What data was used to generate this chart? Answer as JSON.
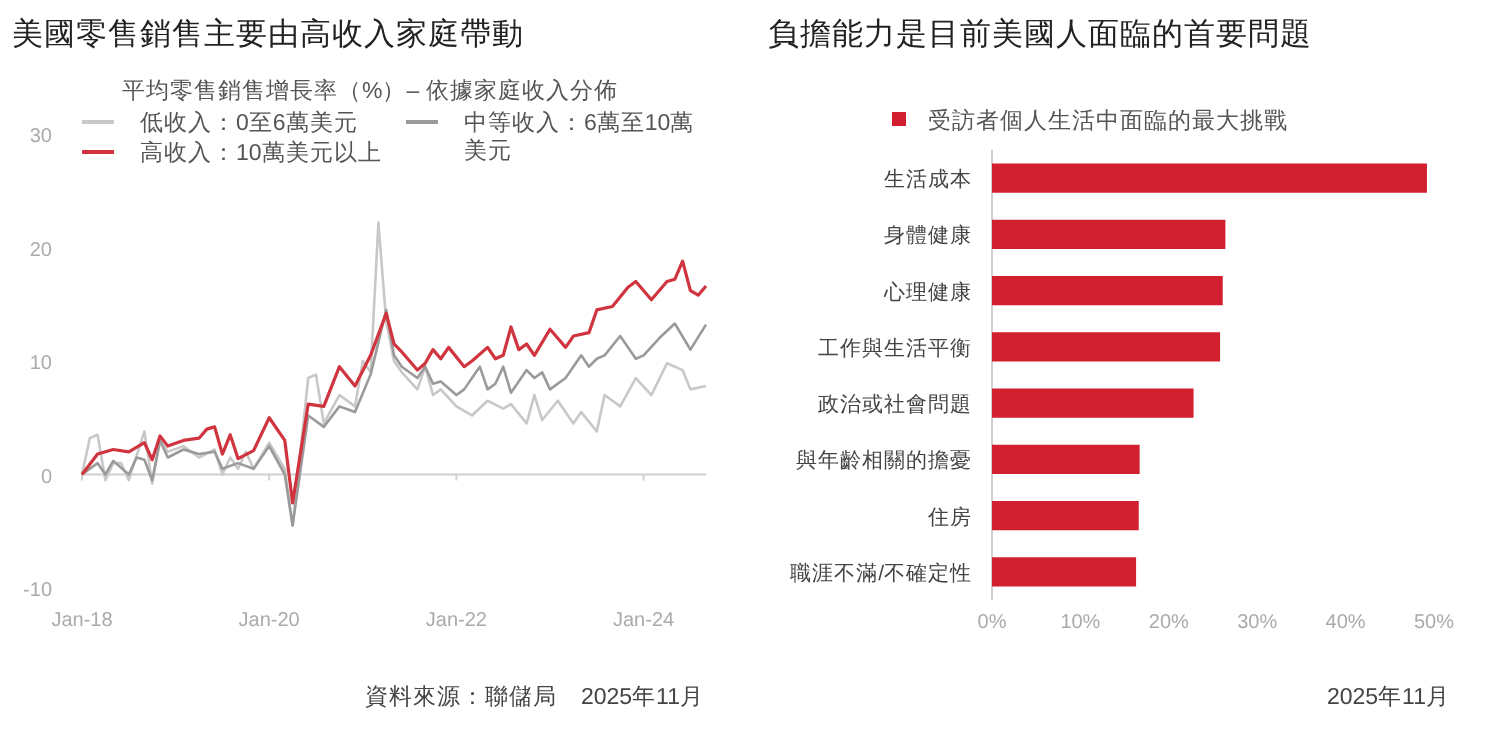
{
  "chart_data": [
    {
      "type": "line",
      "title": "美國零售銷售主要由高收入家庭帶動",
      "legend_title": "平均零售銷售增長率（%）– 依據家庭收入分佈",
      "legend": "top",
      "marker": "none",
      "line_style": "solid",
      "grid": false,
      "xlim": [
        "2018-01",
        "2024-09"
      ],
      "xticks": [
        {
          "value": "2018-01",
          "label": "Jan-18"
        },
        {
          "value": "2020-01",
          "label": "Jan-20"
        },
        {
          "value": "2022-01",
          "label": "Jan-22"
        },
        {
          "value": "2024-01",
          "label": "Jan-24"
        }
      ],
      "ylim": [
        -10,
        30
      ],
      "yticks": [
        -10,
        0,
        10,
        20,
        30
      ],
      "ref_lines": [
        {
          "axis": "y",
          "value": 0,
          "color": "#d0d0d0"
        }
      ],
      "annotations": [
        "資料來源：聯儲局　2025年11月"
      ],
      "series": [
        {
          "name": "低收入：0至6萬美元",
          "color": "#c8c8c8",
          "x": [
            "2018-01",
            "2018-02",
            "2018-03",
            "2018-04",
            "2018-05",
            "2018-06",
            "2018-07",
            "2018-09",
            "2018-10",
            "2018-11",
            "2018-12",
            "2019-02",
            "2019-04",
            "2019-06",
            "2019-07",
            "2019-08",
            "2019-09",
            "2019-10",
            "2019-11",
            "2020-01",
            "2020-03",
            "2020-04",
            "2020-06",
            "2020-07",
            "2020-08",
            "2020-10",
            "2020-12",
            "2021-01",
            "2021-02",
            "2021-03",
            "2021-04",
            "2021-05",
            "2021-06",
            "2021-08",
            "2021-09",
            "2021-10",
            "2021-11",
            "2022-01",
            "2022-03",
            "2022-05",
            "2022-07",
            "2022-08",
            "2022-10",
            "2022-11",
            "2022-12",
            "2023-02",
            "2023-04",
            "2023-05",
            "2023-07",
            "2023-08",
            "2023-10",
            "2023-12",
            "2024-02",
            "2024-04",
            "2024-06",
            "2024-07",
            "2024-09"
          ],
          "values": [
            0,
            3.2,
            3.5,
            -0.5,
            1,
            1,
            -0.5,
            3.8,
            -0.8,
            3,
            2,
            2.5,
            1.5,
            2.2,
            0,
            1.5,
            0.5,
            2,
            0.5,
            2.8,
            0.5,
            -4.5,
            8.5,
            8.8,
            4.5,
            7,
            6,
            10,
            9,
            22.2,
            13.5,
            10,
            9,
            7.5,
            9.5,
            7,
            7.5,
            6,
            5.2,
            6.5,
            5.8,
            6.2,
            4.5,
            7,
            4.8,
            6.5,
            4.5,
            5.5,
            3.8,
            7,
            6,
            8.5,
            7,
            9.8,
            9.2,
            7.5,
            7.8
          ]
        },
        {
          "name": "中等收入：6萬至10萬美元",
          "color": "#9a9a9a",
          "x": [
            "2018-01",
            "2018-03",
            "2018-04",
            "2018-05",
            "2018-07",
            "2018-08",
            "2018-09",
            "2018-10",
            "2018-11",
            "2018-12",
            "2019-02",
            "2019-04",
            "2019-06",
            "2019-07",
            "2019-09",
            "2019-11",
            "2020-01",
            "2020-03",
            "2020-04",
            "2020-06",
            "2020-08",
            "2020-10",
            "2020-12",
            "2021-02",
            "2021-04",
            "2021-05",
            "2021-06",
            "2021-08",
            "2021-09",
            "2021-10",
            "2021-11",
            "2022-01",
            "2022-02",
            "2022-04",
            "2022-05",
            "2022-06",
            "2022-07",
            "2022-08",
            "2022-10",
            "2022-11",
            "2022-12",
            "2023-01",
            "2023-03",
            "2023-05",
            "2023-06",
            "2023-07",
            "2023-08",
            "2023-10",
            "2023-12",
            "2024-01",
            "2024-03",
            "2024-05",
            "2024-07",
            "2024-09"
          ],
          "values": [
            0,
            1,
            0,
            1.2,
            0,
            1.5,
            1.3,
            -0.5,
            3,
            1.5,
            2.2,
            1.8,
            2,
            0.5,
            1,
            0.5,
            2.5,
            0,
            -4.5,
            5.2,
            4.2,
            6,
            5.5,
            8.8,
            14.5,
            10.5,
            9.5,
            8.5,
            9.5,
            8,
            8.2,
            7,
            7.5,
            9.5,
            7.5,
            8,
            9.5,
            7.2,
            9.2,
            8.5,
            9,
            7.5,
            8.5,
            10.5,
            9.5,
            10.2,
            10.5,
            12.2,
            10.2,
            10.5,
            12,
            13.3,
            11,
            13.2
          ]
        },
        {
          "name": "高收入：10萬美元以上",
          "color": "#d0343f",
          "x": [
            "2018-01",
            "2018-03",
            "2018-05",
            "2018-07",
            "2018-09",
            "2018-10",
            "2018-11",
            "2018-12",
            "2019-02",
            "2019-04",
            "2019-05",
            "2019-06",
            "2019-07",
            "2019-08",
            "2019-09",
            "2019-11",
            "2020-01",
            "2020-03",
            "2020-04",
            "2020-06",
            "2020-08",
            "2020-10",
            "2020-12",
            "2021-02",
            "2021-04",
            "2021-05",
            "2021-06",
            "2021-08",
            "2021-09",
            "2021-10",
            "2021-11",
            "2021-12",
            "2022-02",
            "2022-03",
            "2022-05",
            "2022-06",
            "2022-07",
            "2022-08",
            "2022-09",
            "2022-10",
            "2022-11",
            "2023-01",
            "2023-02",
            "2023-03",
            "2023-04",
            "2023-06",
            "2023-07",
            "2023-09",
            "2023-11",
            "2023-12",
            "2024-02",
            "2024-04",
            "2024-05",
            "2024-06",
            "2024-07",
            "2024-08",
            "2024-09"
          ],
          "values": [
            0,
            1.8,
            2.2,
            2,
            2.8,
            1.3,
            3.4,
            2.5,
            3,
            3.2,
            4,
            4.2,
            1.8,
            3.5,
            1.4,
            2.1,
            5,
            3,
            -2.5,
            6.2,
            6,
            9.5,
            7.8,
            10.5,
            14.2,
            11.5,
            10.8,
            9.2,
            9.8,
            11,
            10.2,
            11.2,
            9.5,
            10,
            11.2,
            10.2,
            10.5,
            13,
            11,
            11.5,
            10.5,
            12.8,
            12,
            11.2,
            12.2,
            12.5,
            14.5,
            14.8,
            16.5,
            17,
            15.4,
            17,
            17.2,
            18.8,
            16.2,
            15.8,
            16.6
          ]
        }
      ]
    },
    {
      "type": "bar",
      "orientation": "horizontal",
      "title": "負擔能力是目前美國人面臨的首要問題",
      "legend": "top",
      "grid": false,
      "categories": [
        "生活成本",
        "身體健康",
        "心理健康",
        "工作與生活平衡",
        "政治或社會問題",
        "與年齡相關的擔憂",
        "住房",
        "職涯不滿/不確定性"
      ],
      "xlim": [
        0,
        50
      ],
      "xticks": [
        {
          "value": 0,
          "label": "0%"
        },
        {
          "value": 10,
          "label": "10%"
        },
        {
          "value": 20,
          "label": "20%"
        },
        {
          "value": 30,
          "label": "30%"
        },
        {
          "value": 40,
          "label": "40%"
        },
        {
          "value": 50,
          "label": "50%"
        }
      ],
      "annotations": [
        "2025年11月"
      ],
      "series": [
        {
          "name": "受訪者個人生活中面臨的最大挑戰",
          "color": "#d21f2f",
          "values": [
            49.2,
            26.4,
            26.1,
            25.8,
            22.8,
            16.7,
            16.6,
            16.3
          ]
        }
      ]
    }
  ]
}
